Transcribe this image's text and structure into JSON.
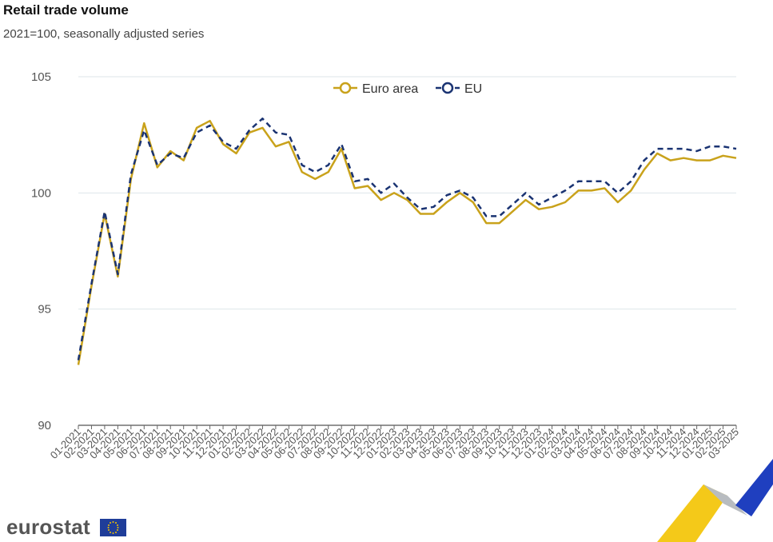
{
  "header": {
    "title": "Retail trade volume",
    "subtitle": "2021=100, seasonally adjusted series"
  },
  "brand": {
    "logo_text": "eurostat"
  },
  "colors": {
    "euro_area": "#c9a21b",
    "eu": "#1a3372",
    "grid": "#dde6ea"
  },
  "chart_data": {
    "type": "line",
    "title": "Retail trade volume",
    "subtitle": "2021=100, seasonally adjusted series",
    "ylim": [
      90,
      105
    ],
    "yticks": [
      90,
      95,
      100,
      105
    ],
    "grid": true,
    "legend_position": "top-center",
    "categories": [
      "01-2021",
      "02-2021",
      "03-2021",
      "04-2021",
      "05-2021",
      "06-2021",
      "07-2021",
      "08-2021",
      "09-2021",
      "10-2021",
      "11-2021",
      "12-2021",
      "01-2022",
      "02-2022",
      "03-2022",
      "04-2022",
      "05-2022",
      "06-2022",
      "07-2022",
      "08-2022",
      "09-2022",
      "10-2022",
      "11-2022",
      "12-2022",
      "01-2023",
      "02-2023",
      "03-2023",
      "04-2023",
      "05-2023",
      "06-2023",
      "07-2023",
      "08-2023",
      "09-2023",
      "10-2023",
      "11-2023",
      "12-2023",
      "01-2024",
      "02-2024",
      "03-2024",
      "04-2024",
      "05-2024",
      "06-2024",
      "07-2024",
      "08-2024",
      "09-2024",
      "10-2024",
      "11-2024",
      "12-2024",
      "01-2025",
      "02-2025",
      "03-2025"
    ],
    "series": [
      {
        "name": "Euro area",
        "color": "#c9a21b",
        "dash": "solid",
        "values": [
          92.6,
          96.0,
          99.1,
          96.4,
          100.6,
          103.0,
          101.1,
          101.8,
          101.4,
          102.8,
          103.1,
          102.1,
          101.7,
          102.6,
          102.8,
          102.0,
          102.2,
          100.9,
          100.6,
          100.9,
          101.9,
          100.2,
          100.3,
          99.7,
          100.0,
          99.7,
          99.1,
          99.1,
          99.6,
          100.0,
          99.6,
          98.7,
          98.7,
          99.2,
          99.7,
          99.3,
          99.4,
          99.6,
          100.1,
          100.1,
          100.2,
          99.6,
          100.1,
          101.0,
          101.7,
          101.4,
          101.5,
          101.4,
          101.4,
          101.6,
          101.5
        ]
      },
      {
        "name": "EU",
        "color": "#1a3372",
        "dash": "dashed",
        "values": [
          92.8,
          96.1,
          99.2,
          96.5,
          100.8,
          102.7,
          101.2,
          101.7,
          101.5,
          102.6,
          102.9,
          102.2,
          101.9,
          102.7,
          103.2,
          102.6,
          102.5,
          101.2,
          100.9,
          101.2,
          102.1,
          100.5,
          100.6,
          100.0,
          100.4,
          99.8,
          99.3,
          99.4,
          99.9,
          100.1,
          99.8,
          99.0,
          99.0,
          99.5,
          100.0,
          99.5,
          99.8,
          100.1,
          100.5,
          100.5,
          100.5,
          100.0,
          100.5,
          101.4,
          101.9,
          101.9,
          101.9,
          101.8,
          102.0,
          102.0,
          101.9
        ]
      }
    ]
  }
}
